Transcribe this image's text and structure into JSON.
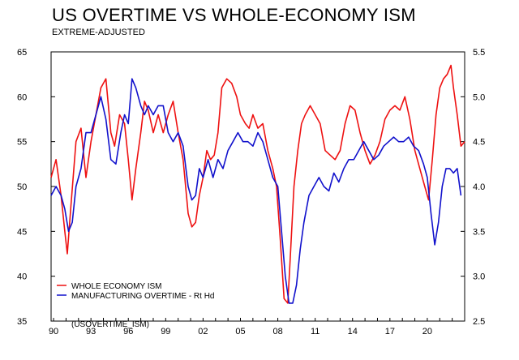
{
  "chart_data": {
    "type": "line",
    "title": "US OVERTIME VS WHOLE-ECONOMY ISM",
    "subtitle": "EXTREME-ADJUSTED",
    "source_tag": "(USOVERTIME_ISM)",
    "x_tick_labels": [
      "90",
      "93",
      "96",
      "99",
      "02",
      "05",
      "08",
      "11",
      "14",
      "17",
      "20"
    ],
    "x_tick_years": [
      1990,
      1993,
      1996,
      1999,
      2002,
      2005,
      2008,
      2011,
      2014,
      2017,
      2020
    ],
    "xlim": [
      1989.8,
      2023.0
    ],
    "left_axis": {
      "ylim": [
        35,
        65
      ],
      "ticks": [
        35,
        40,
        45,
        50,
        55,
        60,
        65
      ],
      "labels": [
        "35",
        "40",
        "45",
        "50",
        "55",
        "60",
        "65"
      ]
    },
    "right_axis": {
      "ylim": [
        2.5,
        5.5
      ],
      "ticks": [
        2.5,
        3.0,
        3.5,
        4.0,
        4.5,
        5.0,
        5.5
      ],
      "labels": [
        "2.5",
        "3.0",
        "3.5",
        "4.0",
        "4.5",
        "5.0",
        "5.5"
      ]
    },
    "legend_position": "bottom-left",
    "series": [
      {
        "name": "WHOLE ECONOMY ISM",
        "axis": "left",
        "color": "#ee1111",
        "x": [
          1989.8,
          1990.2,
          1990.6,
          1990.9,
          1991.1,
          1991.4,
          1991.8,
          1992.2,
          1992.6,
          1993.0,
          1993.4,
          1993.8,
          1994.2,
          1994.6,
          1994.9,
          1995.3,
          1995.7,
          1996.0,
          1996.3,
          1996.6,
          1997.0,
          1997.3,
          1997.6,
          1998.0,
          1998.4,
          1998.8,
          1999.2,
          1999.6,
          2000.0,
          2000.4,
          2000.8,
          2001.1,
          2001.4,
          2001.7,
          2002.0,
          2002.3,
          2002.6,
          2002.9,
          2003.2,
          2003.5,
          2003.9,
          2004.3,
          2004.7,
          2005.0,
          2005.4,
          2005.7,
          2006.0,
          2006.4,
          2006.8,
          2007.2,
          2007.6,
          2007.9,
          2008.2,
          2008.5,
          2008.8,
          2009.0,
          2009.3,
          2009.6,
          2009.9,
          2010.2,
          2010.6,
          2011.0,
          2011.4,
          2011.8,
          2012.2,
          2012.6,
          2013.0,
          2013.4,
          2013.8,
          2014.2,
          2014.6,
          2015.0,
          2015.4,
          2015.8,
          2016.2,
          2016.6,
          2017.0,
          2017.4,
          2017.8,
          2018.2,
          2018.6,
          2019.0,
          2019.4,
          2019.8,
          2020.1,
          2020.4,
          2020.7,
          2021.0,
          2021.3,
          2021.6,
          2021.9,
          2022.1,
          2022.4,
          2022.7,
          2023.0
        ],
        "values": [
          51,
          53,
          49,
          45,
          42.5,
          48,
          55,
          56.5,
          51,
          55,
          58,
          61,
          62,
          56,
          54.5,
          58,
          57,
          53,
          48.5,
          52,
          56,
          59.5,
          58.5,
          56,
          58,
          56,
          58,
          59.5,
          56,
          53,
          47,
          45.5,
          46,
          49,
          51,
          54,
          53,
          53.5,
          56,
          61,
          62,
          61.5,
          60,
          58,
          57,
          56.5,
          58,
          56.5,
          57,
          54,
          52,
          50,
          44,
          37.5,
          37,
          42,
          50,
          54,
          57,
          58,
          59,
          58,
          57,
          54,
          53.5,
          53,
          54,
          57,
          59,
          58.5,
          56,
          54,
          52.5,
          53.5,
          55,
          57.5,
          58.5,
          59,
          58.5,
          60,
          57.5,
          54,
          52,
          50,
          48.5,
          53,
          58,
          61,
          62,
          62.5,
          63.5,
          61,
          58,
          54.5,
          55
        ]
      },
      {
        "name": "MANUFACTURING OVERTIME - Rt Hd",
        "axis": "right",
        "color": "#1111cc",
        "x": [
          1989.8,
          1990.2,
          1990.6,
          1990.9,
          1991.2,
          1991.5,
          1991.8,
          1992.2,
          1992.6,
          1993.0,
          1993.4,
          1993.8,
          1994.2,
          1994.6,
          1995.0,
          1995.4,
          1995.7,
          1996.0,
          1996.3,
          1996.6,
          1997.0,
          1997.3,
          1997.6,
          1998.0,
          1998.4,
          1998.8,
          1999.2,
          1999.6,
          2000.0,
          2000.4,
          2000.8,
          2001.1,
          2001.4,
          2001.7,
          2002.0,
          2002.4,
          2002.8,
          2003.2,
          2003.6,
          2004.0,
          2004.4,
          2004.8,
          2005.2,
          2005.6,
          2006.0,
          2006.4,
          2006.8,
          2007.2,
          2007.6,
          2008.0,
          2008.3,
          2008.6,
          2008.9,
          2009.2,
          2009.5,
          2009.8,
          2010.1,
          2010.5,
          2010.9,
          2011.3,
          2011.7,
          2012.1,
          2012.5,
          2012.9,
          2013.3,
          2013.7,
          2014.1,
          2014.5,
          2014.9,
          2015.3,
          2015.7,
          2016.1,
          2016.5,
          2016.9,
          2017.3,
          2017.7,
          2018.1,
          2018.5,
          2018.9,
          2019.3,
          2019.7,
          2020.0,
          2020.3,
          2020.6,
          2020.9,
          2021.2,
          2021.5,
          2021.8,
          2022.1,
          2022.4,
          2022.7
        ],
        "values": [
          3.9,
          4.0,
          3.9,
          3.75,
          3.5,
          3.6,
          4.0,
          4.2,
          4.6,
          4.6,
          4.8,
          5.0,
          4.75,
          4.3,
          4.25,
          4.6,
          4.8,
          4.7,
          5.2,
          5.1,
          4.9,
          4.8,
          4.9,
          4.8,
          4.9,
          4.9,
          4.6,
          4.5,
          4.6,
          4.45,
          4.0,
          3.85,
          3.9,
          4.2,
          4.1,
          4.3,
          4.1,
          4.3,
          4.2,
          4.4,
          4.5,
          4.6,
          4.5,
          4.5,
          4.45,
          4.6,
          4.5,
          4.3,
          4.1,
          4.0,
          3.5,
          3.0,
          2.7,
          2.7,
          2.9,
          3.3,
          3.6,
          3.9,
          4.0,
          4.1,
          4.0,
          3.95,
          4.15,
          4.05,
          4.2,
          4.3,
          4.3,
          4.4,
          4.5,
          4.4,
          4.3,
          4.35,
          4.45,
          4.5,
          4.55,
          4.5,
          4.5,
          4.55,
          4.45,
          4.4,
          4.25,
          4.1,
          3.7,
          3.35,
          3.6,
          4.0,
          4.2,
          4.2,
          4.15,
          4.2,
          3.9
        ]
      }
    ]
  }
}
